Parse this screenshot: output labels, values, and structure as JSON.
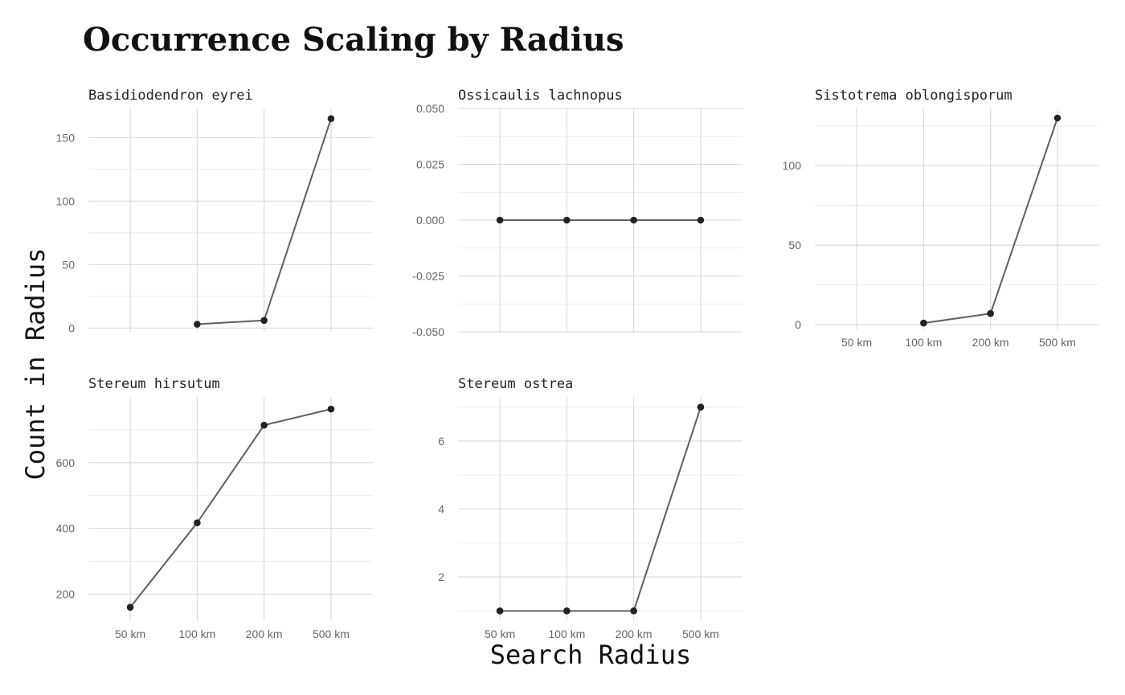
{
  "chart_data": {
    "type": "line",
    "title": "Occurrence Scaling by Radius",
    "xlabel": "Search Radius",
    "ylabel": "Count in Radius",
    "categories": [
      "50 km",
      "100 km",
      "200 km",
      "500 km"
    ],
    "grid": true,
    "facet_scales": "free_y",
    "panels": [
      {
        "name": "Basidiodendron eyrei",
        "values": [
          null,
          3,
          6,
          165
        ],
        "ylim": [
          -3,
          173
        ],
        "yticks": [
          0,
          50,
          100,
          150
        ],
        "yticklabels": [
          "0",
          "50",
          "100",
          "150"
        ],
        "show_xticks": false
      },
      {
        "name": "Ossicaulis lachnopus",
        "values": [
          0,
          0,
          0,
          0
        ],
        "ylim": [
          -0.05,
          0.05
        ],
        "yticks": [
          -0.05,
          -0.025,
          0,
          0.025,
          0.05
        ],
        "yticklabels": [
          "-0.050",
          "-0.025",
          "0.000",
          "0.025",
          "0.050"
        ],
        "show_xticks": false
      },
      {
        "name": "Sistotrema oblongisporum",
        "values": [
          null,
          1,
          7,
          130
        ],
        "ylim": [
          -3,
          136
        ],
        "yticks": [
          0,
          50,
          100
        ],
        "yticklabels": [
          "0",
          "50",
          "100"
        ],
        "show_xticks": true
      },
      {
        "name": "Stereum hirsutum",
        "values": [
          160,
          417,
          714,
          763
        ],
        "ylim": [
          118,
          800
        ],
        "yticks": [
          200,
          400,
          600
        ],
        "yticklabels": [
          "200",
          "400",
          "600"
        ],
        "show_xticks": true
      },
      {
        "name": "Stereum ostrea",
        "values": [
          1,
          1,
          1,
          7
        ],
        "ylim": [
          0.7,
          7.3
        ],
        "yticks": [
          2,
          4,
          6
        ],
        "yticklabels": [
          "2",
          "4",
          "6"
        ],
        "show_xticks": true
      }
    ]
  }
}
